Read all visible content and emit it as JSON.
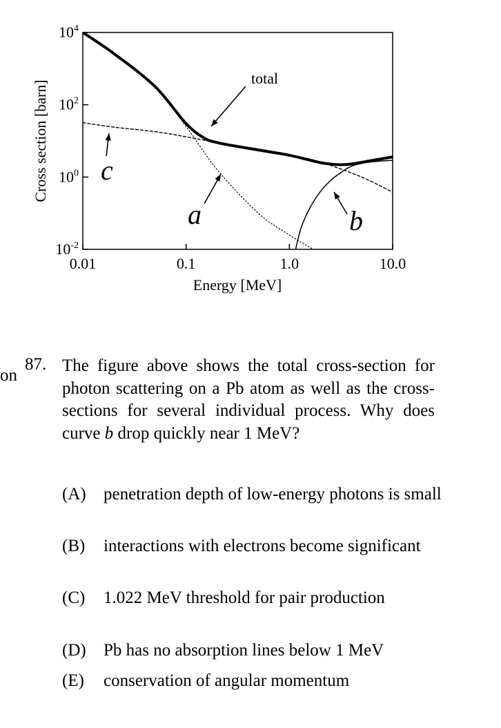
{
  "chart_data": {
    "type": "line",
    "x_scale": "log",
    "y_scale": "log",
    "xlabel": "Energy [MeV]",
    "ylabel": "Cross section [barn]",
    "xlim": [
      0.01,
      10.0
    ],
    "ylim": [
      0.01,
      10000
    ],
    "x_ticks": [
      0.01,
      0.1,
      1.0,
      10.0
    ],
    "x_tick_labels": [
      "0.01",
      "0.1",
      "1.0",
      "10.0"
    ],
    "y_ticks": [
      0.01,
      1,
      100,
      10000
    ],
    "y_tick_labels": [
      {
        "base": "10",
        "exp": "-2"
      },
      {
        "base": "10",
        "exp": "0"
      },
      {
        "base": "10",
        "exp": "2"
      },
      {
        "base": "10",
        "exp": "4"
      }
    ],
    "series": [
      {
        "name": "total",
        "style": "thick-solid",
        "points": [
          [
            0.01,
            10000
          ],
          [
            0.02,
            2600
          ],
          [
            0.05,
            320
          ],
          [
            0.1,
            30
          ],
          [
            0.15,
            12
          ],
          [
            0.2,
            9
          ],
          [
            0.3,
            7.2
          ],
          [
            0.5,
            5.6
          ],
          [
            1.0,
            4.0
          ],
          [
            2.0,
            2.5
          ],
          [
            3.0,
            2.2
          ],
          [
            4.0,
            2.3
          ],
          [
            6.0,
            2.8
          ],
          [
            10.0,
            3.6
          ]
        ]
      },
      {
        "name": "a",
        "style": "dotted",
        "points": [
          [
            0.01,
            10000
          ],
          [
            0.02,
            2500
          ],
          [
            0.05,
            300
          ],
          [
            0.1,
            25
          ],
          [
            0.2,
            1.6
          ],
          [
            0.5,
            0.1
          ],
          [
            1.0,
            0.025
          ],
          [
            1.7,
            0.01
          ]
        ]
      },
      {
        "name": "c",
        "style": "dashed",
        "points": [
          [
            0.01,
            32
          ],
          [
            0.02,
            24
          ],
          [
            0.05,
            18
          ],
          [
            0.1,
            13
          ],
          [
            0.2,
            9
          ],
          [
            0.5,
            6
          ],
          [
            1.0,
            4.2
          ],
          [
            2.0,
            2.6
          ],
          [
            5.0,
            1.0
          ],
          [
            10.0,
            0.38
          ]
        ]
      },
      {
        "name": "b",
        "style": "thin-solid",
        "points": [
          [
            1.15,
            0.01
          ],
          [
            1.3,
            0.04
          ],
          [
            1.6,
            0.15
          ],
          [
            2.0,
            0.4
          ],
          [
            2.5,
            0.8
          ],
          [
            3.0,
            1.2
          ],
          [
            4.0,
            2.0
          ],
          [
            6.0,
            2.6
          ],
          [
            10.0,
            2.9
          ]
        ]
      }
    ],
    "annotations": [
      "total",
      "a",
      "b",
      "c"
    ]
  },
  "question": {
    "stray_fragment": "on",
    "number": "87.",
    "text_before": "The figure above shows the total cross-section for photon scattering on a Pb atom as well as the cross-sections for several individual process. Why does curve ",
    "curve_label": "b",
    "text_after": " drop quickly near 1 MeV?"
  },
  "choices": [
    {
      "label": "(A)",
      "text": "penetration depth of low-energy photons is small"
    },
    {
      "label": "(B)",
      "text": "interactions with electrons become significant"
    },
    {
      "label": "(C)",
      "text": "1.022 MeV threshold for pair production"
    },
    {
      "label": "(D)",
      "text": "Pb has no absorption lines below 1 MeV"
    },
    {
      "label": "(E)",
      "text": "conservation of angular momentum"
    }
  ]
}
